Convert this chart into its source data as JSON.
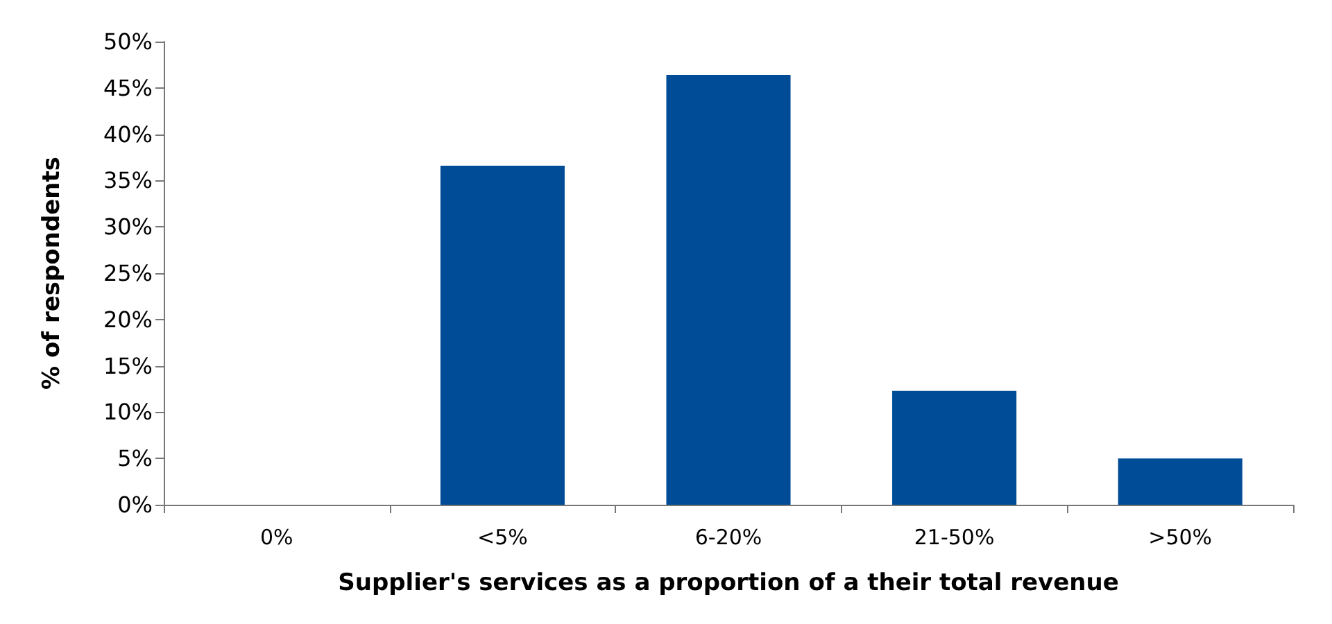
{
  "chart_data": {
    "type": "bar",
    "categories": [
      "0%",
      "<5%",
      "6-20%",
      "21-50%",
      ">50%"
    ],
    "values": [
      0,
      36.6,
      46.4,
      12.3,
      5.0
    ],
    "color": "#004c97",
    "xlabel": "Supplier's services as a proportion of a their total revenue",
    "ylabel": "% of respondents",
    "ylim": [
      0,
      50
    ],
    "yticks": [
      {
        "value": 0,
        "label": "0%"
      },
      {
        "value": 5,
        "label": "5%"
      },
      {
        "value": 10,
        "label": "10%"
      },
      {
        "value": 15,
        "label": "15%"
      },
      {
        "value": 20,
        "label": "20%"
      },
      {
        "value": 25,
        "label": "25%"
      },
      {
        "value": 30,
        "label": "30%"
      },
      {
        "value": 35,
        "label": "35%"
      },
      {
        "value": 40,
        "label": "40%"
      },
      {
        "value": 45,
        "label": "45%"
      },
      {
        "value": 50,
        "label": "50%"
      }
    ],
    "grid": false
  }
}
